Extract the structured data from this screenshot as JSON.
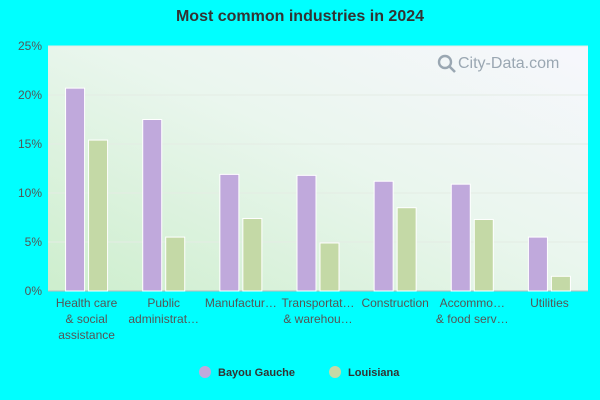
{
  "chart_data": {
    "type": "bar",
    "title": "Most common industries in 2024",
    "xlabel": "",
    "ylabel": "",
    "ylim": [
      0,
      25
    ],
    "yticks": [
      "0%",
      "5%",
      "10%",
      "15%",
      "20%",
      "25%"
    ],
    "ytick_values": [
      0,
      5,
      10,
      15,
      20,
      25
    ],
    "categories": [
      [
        "Health care",
        "& social",
        "assistance"
      ],
      [
        "Public",
        "administrat…"
      ],
      [
        "Manufactur…"
      ],
      [
        "Transportat…",
        "& warehou…"
      ],
      [
        "Construction"
      ],
      [
        "Accommo…",
        "& food serv…"
      ],
      [
        "Utilities"
      ]
    ],
    "series": [
      {
        "name": "Bayou Gauche",
        "color": "#c0a9dc",
        "values": [
          20.7,
          17.5,
          11.9,
          11.8,
          11.2,
          10.9,
          5.5
        ]
      },
      {
        "name": "Louisiana",
        "color": "#c4d9a6",
        "values": [
          15.4,
          5.5,
          7.4,
          4.9,
          8.5,
          7.3,
          1.5
        ]
      }
    ],
    "legend_position": "bottom",
    "grid": true
  },
  "watermark": "City-Data.com",
  "watermark_icon": "search-icon"
}
